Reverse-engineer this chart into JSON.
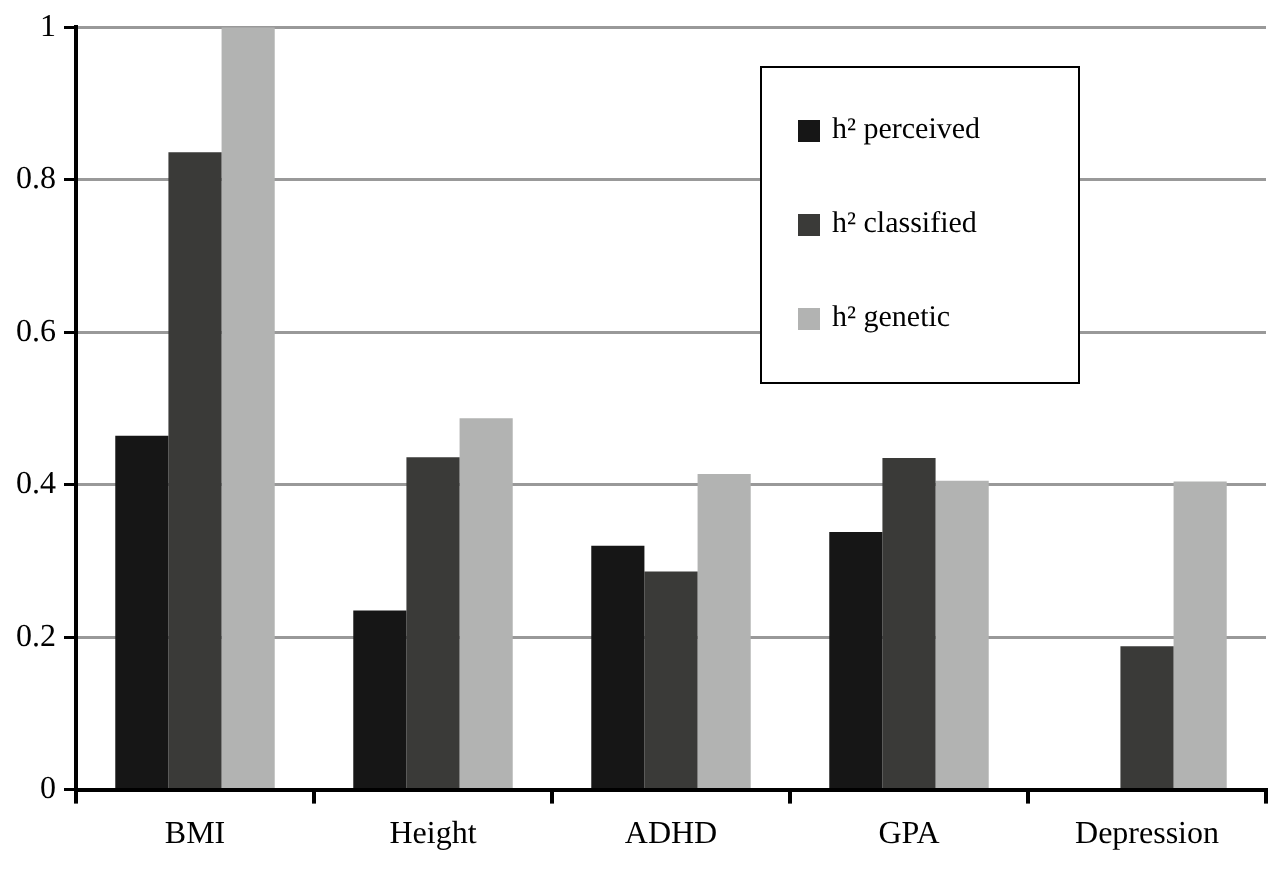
{
  "chart_data": {
    "type": "bar",
    "categories": [
      "BMI",
      "Height",
      "ADHD",
      "GPA",
      "Depression"
    ],
    "series": [
      {
        "name": "h² perceived",
        "color": "#161616",
        "values": [
          0.464,
          0.235,
          0.32,
          0.338,
          null
        ]
      },
      {
        "name": "h² classified",
        "color": "#3a3a38",
        "values": [
          0.836,
          0.436,
          0.286,
          0.435,
          0.188
        ]
      },
      {
        "name": "h² genetic",
        "color": "#b2b3b2",
        "values": [
          1.0,
          0.487,
          0.414,
          0.405,
          0.404
        ]
      }
    ],
    "ylim": [
      0,
      1
    ],
    "yticks": [
      0,
      0.2,
      0.4,
      0.6,
      0.8,
      1
    ],
    "grid": "y",
    "legend": "top right"
  }
}
